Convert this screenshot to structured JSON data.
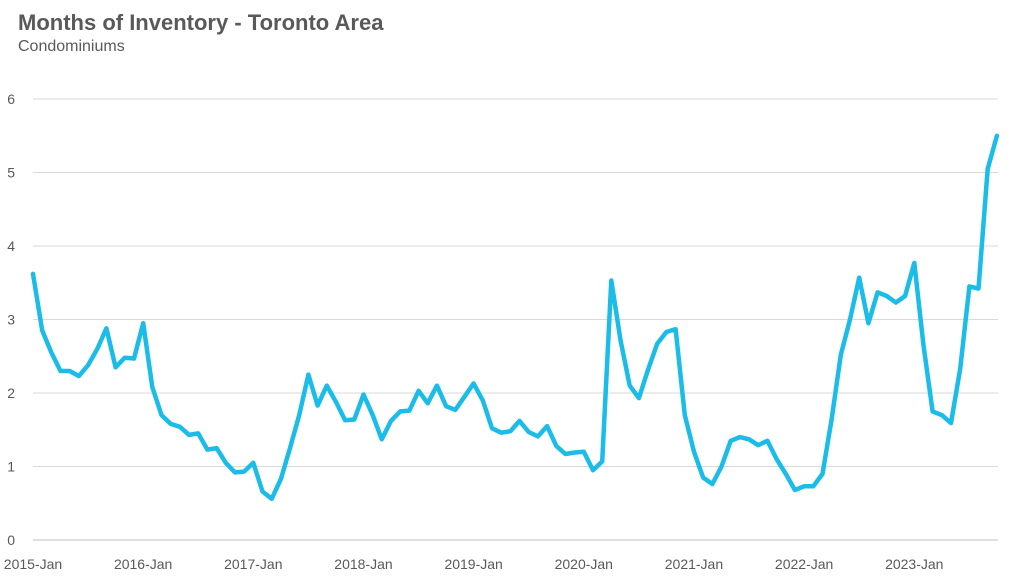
{
  "chart_data": {
    "type": "line",
    "title": "Months of Inventory - Toronto Area",
    "subtitle": "Condominiums",
    "xlabel": "",
    "ylabel": "",
    "ylim": [
      0,
      6
    ],
    "yticks": [
      "0",
      "1",
      "2",
      "3",
      "4",
      "5",
      "6"
    ],
    "xticks": [
      "2015-Jan",
      "2016-Jan",
      "2017-Jan",
      "2018-Jan",
      "2019-Jan",
      "2020-Jan",
      "2021-Jan",
      "2022-Jan",
      "2023-Jan"
    ],
    "grid": true,
    "line_color": "#1bbde8",
    "series": [
      {
        "name": "",
        "x_start": "2015-Jan",
        "values": [
          3.62,
          2.85,
          2.55,
          2.3,
          2.3,
          2.23,
          2.38,
          2.6,
          2.88,
          2.35,
          2.48,
          2.47,
          2.95,
          2.08,
          1.7,
          1.58,
          1.54,
          1.43,
          1.45,
          1.23,
          1.25,
          1.05,
          0.92,
          0.93,
          1.05,
          0.66,
          0.56,
          0.83,
          1.25,
          1.7,
          2.25,
          1.83,
          2.1,
          1.88,
          1.63,
          1.64,
          1.98,
          1.7,
          1.37,
          1.62,
          1.75,
          1.76,
          2.03,
          1.86,
          2.1,
          1.82,
          1.77,
          1.95,
          2.13,
          1.9,
          1.52,
          1.46,
          1.48,
          1.62,
          1.47,
          1.41,
          1.55,
          1.28,
          1.17,
          1.19,
          1.2,
          0.95,
          1.07,
          3.53,
          2.72,
          2.1,
          1.93,
          2.32,
          2.67,
          2.83,
          2.87,
          1.7,
          1.2,
          0.85,
          0.76,
          1.0,
          1.35,
          1.4,
          1.37,
          1.29,
          1.35,
          1.1,
          0.9,
          0.68,
          0.73,
          0.73,
          0.9,
          1.65,
          2.52,
          3.0,
          3.57,
          2.95,
          3.37,
          3.32,
          3.23,
          3.32,
          3.77,
          2.65,
          1.75,
          1.7,
          1.59,
          2.33,
          3.45,
          3.42,
          5.05,
          5.5
        ]
      }
    ]
  }
}
